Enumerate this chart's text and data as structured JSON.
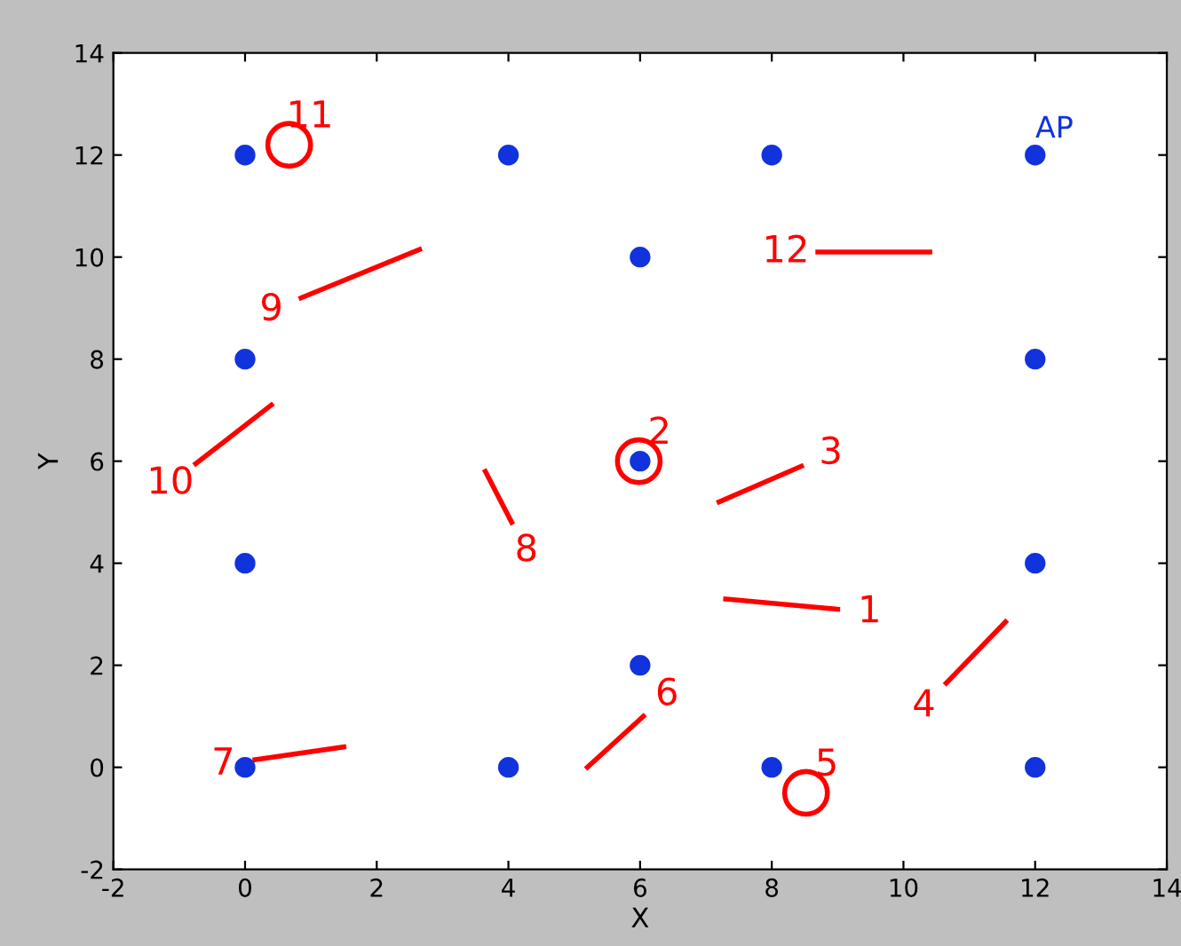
{
  "chart_data": {
    "type": "scatter",
    "xlabel": "X",
    "ylabel": "Y",
    "xlim": [
      -2,
      14
    ],
    "ylim": [
      -2,
      14
    ],
    "xticks": [
      -2,
      0,
      2,
      4,
      6,
      8,
      10,
      12,
      14
    ],
    "yticks": [
      -2,
      0,
      2,
      4,
      6,
      8,
      10,
      12,
      14
    ],
    "grid": false,
    "legend": false,
    "series": [
      {
        "name": "AP",
        "marker": "circle",
        "color": "#1133dd",
        "x": [
          0,
          4,
          8,
          6,
          0,
          12,
          6,
          0,
          12,
          6,
          0,
          4,
          8,
          12,
          12
        ],
        "values": [
          12,
          12,
          12,
          10,
          8,
          8,
          6,
          4,
          4,
          2,
          0,
          0,
          0,
          0,
          12
        ]
      },
      {
        "name": "1",
        "type": "line",
        "color": "#ff0000",
        "x": [
          7.3,
          9.0
        ],
        "values": [
          3.3,
          3.1
        ]
      },
      {
        "name": "2",
        "type": "bubble",
        "color": "#ff0000",
        "x": [
          5.98
        ],
        "values": [
          6.0
        ],
        "sizes": [
          1
        ]
      },
      {
        "name": "3",
        "type": "line",
        "color": "#ff0000",
        "x": [
          7.2,
          8.45
        ],
        "values": [
          5.2,
          5.9
        ]
      },
      {
        "name": "4",
        "type": "line",
        "color": "#ff0000",
        "x": [
          11.55,
          10.65
        ],
        "values": [
          2.85,
          1.65
        ]
      },
      {
        "name": "5",
        "type": "bubble",
        "color": "#ff0000",
        "x": [
          8.52
        ],
        "values": [
          -0.5
        ],
        "sizes": [
          1
        ]
      },
      {
        "name": "6",
        "type": "line",
        "color": "#ff0000",
        "x": [
          5.2,
          6.05
        ],
        "values": [
          0.0,
          1.0
        ]
      },
      {
        "name": "7",
        "type": "line",
        "color": "#ff0000",
        "x": [
          1.5,
          0.15
        ],
        "values": [
          0.4,
          0.15
        ]
      },
      {
        "name": "8",
        "type": "line",
        "color": "#ff0000",
        "x": [
          3.65,
          4.05
        ],
        "values": [
          5.8,
          4.8
        ]
      },
      {
        "name": "9",
        "type": "line",
        "color": "#ff0000",
        "x": [
          2.65,
          0.85
        ],
        "values": [
          10.15,
          9.2
        ]
      },
      {
        "name": "10",
        "type": "line",
        "color": "#ff0000",
        "x": [
          0.4,
          -0.75
        ],
        "values": [
          7.1,
          5.95
        ]
      },
      {
        "name": "11",
        "type": "bubble",
        "color": "#ff0000",
        "x": [
          0.67
        ],
        "values": [
          12.2
        ],
        "sizes": [
          1
        ]
      },
      {
        "name": "12",
        "type": "line",
        "color": "#ff0000",
        "x": [
          10.4,
          8.7
        ],
        "values": [
          10.1,
          10.1
        ]
      }
    ]
  }
}
